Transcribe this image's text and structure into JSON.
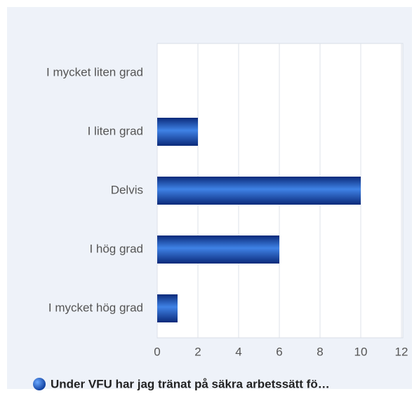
{
  "chart_data": {
    "type": "hbar",
    "categories": [
      "I mycket liten grad",
      "I liten grad",
      "Delvis",
      "I hög grad",
      "I mycket hög grad"
    ],
    "series": [
      {
        "name": "Under VFU har jag tränat på säkra arbetssätt fö…",
        "color": "#1f4fb8",
        "values": [
          0,
          2,
          10,
          6,
          1
        ]
      }
    ],
    "xlim": [
      0,
      12
    ],
    "xticks": [
      0,
      2,
      4,
      6,
      8,
      10,
      12
    ],
    "grid": true,
    "legend": "bottom"
  }
}
